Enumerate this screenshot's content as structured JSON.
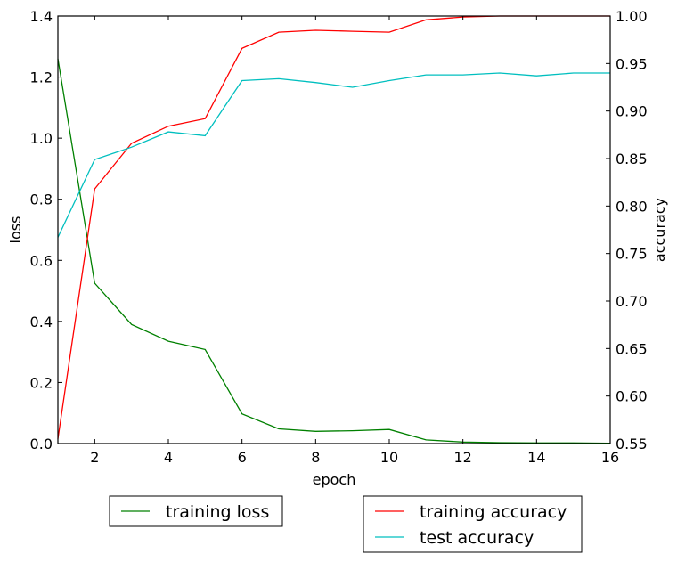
{
  "chart_data": {
    "type": "line",
    "xlabel": "epoch",
    "y_left_label": "loss",
    "y_right_label": "accuracy",
    "xlim": [
      1,
      16
    ],
    "y_left_lim": [
      0.0,
      1.4
    ],
    "y_right_lim": [
      0.55,
      1.0
    ],
    "x_ticks": [
      2,
      4,
      6,
      8,
      10,
      12,
      14,
      16
    ],
    "y_left_ticks": [
      "0.0",
      "0.2",
      "0.4",
      "0.6",
      "0.8",
      "1.0",
      "1.2",
      "1.4"
    ],
    "y_right_ticks": [
      "0.55",
      "0.60",
      "0.65",
      "0.70",
      "0.75",
      "0.80",
      "0.85",
      "0.90",
      "0.95",
      "1.00"
    ],
    "grid": false,
    "x": [
      1,
      2,
      3,
      4,
      5,
      6,
      7,
      8,
      9,
      10,
      11,
      12,
      13,
      14,
      15,
      16
    ],
    "series": [
      {
        "name": "training loss",
        "axis": "left",
        "color": "#008000",
        "values": [
          1.26,
          0.525,
          0.39,
          0.335,
          0.308,
          0.097,
          0.048,
          0.04,
          0.042,
          0.046,
          0.012,
          0.005,
          0.003,
          0.002,
          0.002,
          0.001
        ]
      },
      {
        "name": "training accuracy",
        "axis": "right",
        "color": "#ff0000",
        "values": [
          0.555,
          0.818,
          0.866,
          0.884,
          0.892,
          0.966,
          0.983,
          0.985,
          0.984,
          0.983,
          0.996,
          0.999,
          1.0,
          1.0,
          1.0,
          1.0
        ]
      },
      {
        "name": "test accuracy",
        "axis": "right",
        "color": "#00bfbf",
        "values": [
          0.767,
          0.849,
          0.862,
          0.878,
          0.874,
          0.932,
          0.934,
          0.93,
          0.925,
          0.932,
          0.938,
          0.938,
          0.94,
          0.937,
          0.94,
          0.94
        ]
      }
    ],
    "legends": [
      {
        "placement": "bottom-left",
        "entries": [
          "training loss"
        ]
      },
      {
        "placement": "bottom-right",
        "entries": [
          "training accuracy",
          "test accuracy"
        ]
      }
    ]
  }
}
